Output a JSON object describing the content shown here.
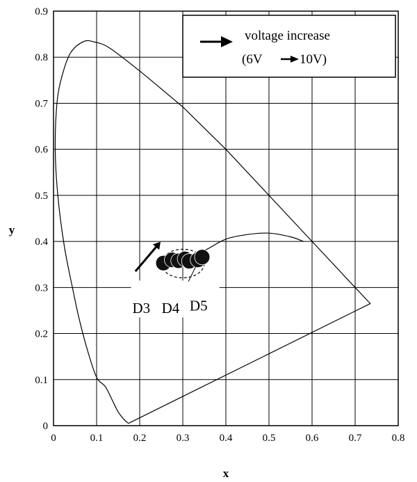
{
  "chart_data": {
    "type": "scatter",
    "title": "",
    "xlabel": "x",
    "ylabel": "y",
    "xlim": [
      0,
      0.8
    ],
    "ylim": [
      0,
      0.9
    ],
    "x_ticks": [
      "0",
      "0.1",
      "0.2",
      "0.3",
      "0.4",
      "0.5",
      "0.6",
      "0.7",
      "0.8"
    ],
    "y_ticks": [
      "0",
      "0.1",
      "0.2",
      "0.3",
      "0.4",
      "0.5",
      "0.6",
      "0.7",
      "0.8",
      "0.9"
    ],
    "grid": true,
    "series": [
      {
        "values": [
          [
            0.174,
            0.005
          ],
          [
            0.165,
            0.012
          ],
          [
            0.15,
            0.03
          ],
          [
            0.135,
            0.058
          ],
          [
            0.12,
            0.085
          ],
          [
            0.1,
            0.105
          ],
          [
            0.08,
            0.16
          ],
          [
            0.06,
            0.23
          ],
          [
            0.045,
            0.295
          ],
          [
            0.025,
            0.39
          ],
          [
            0.01,
            0.5
          ],
          [
            0.004,
            0.6
          ],
          [
            0.008,
            0.7
          ],
          [
            0.02,
            0.76
          ],
          [
            0.04,
            0.81
          ],
          [
            0.07,
            0.834
          ],
          [
            0.095,
            0.833
          ],
          [
            0.13,
            0.82
          ],
          [
            0.2,
            0.77
          ],
          [
            0.3,
            0.692
          ],
          [
            0.4,
            0.6
          ],
          [
            0.5,
            0.5
          ],
          [
            0.6,
            0.4
          ],
          [
            0.7,
            0.3
          ],
          [
            0.735,
            0.265
          ],
          [
            0.174,
            0.005
          ]
        ]
      },
      {
        "values": [
          [
            0.33,
            0.37
          ],
          [
            0.36,
            0.385
          ],
          [
            0.4,
            0.405
          ],
          [
            0.45,
            0.415
          ],
          [
            0.5,
            0.418
          ],
          [
            0.55,
            0.41
          ],
          [
            0.58,
            0.4
          ]
        ]
      },
      {
        "values": [
          [
            0.255,
            0.353
          ],
          [
            0.275,
            0.36
          ],
          [
            0.29,
            0.358
          ],
          [
            0.305,
            0.362
          ],
          [
            0.315,
            0.357
          ],
          [
            0.335,
            0.36
          ],
          [
            0.345,
            0.366
          ]
        ]
      }
    ],
    "annotations": [
      "D3",
      "D4",
      "D5"
    ],
    "legend": {
      "placement": "top-right",
      "line1": "voltage increase",
      "line2": "(6V",
      "line3": "10V)"
    }
  }
}
